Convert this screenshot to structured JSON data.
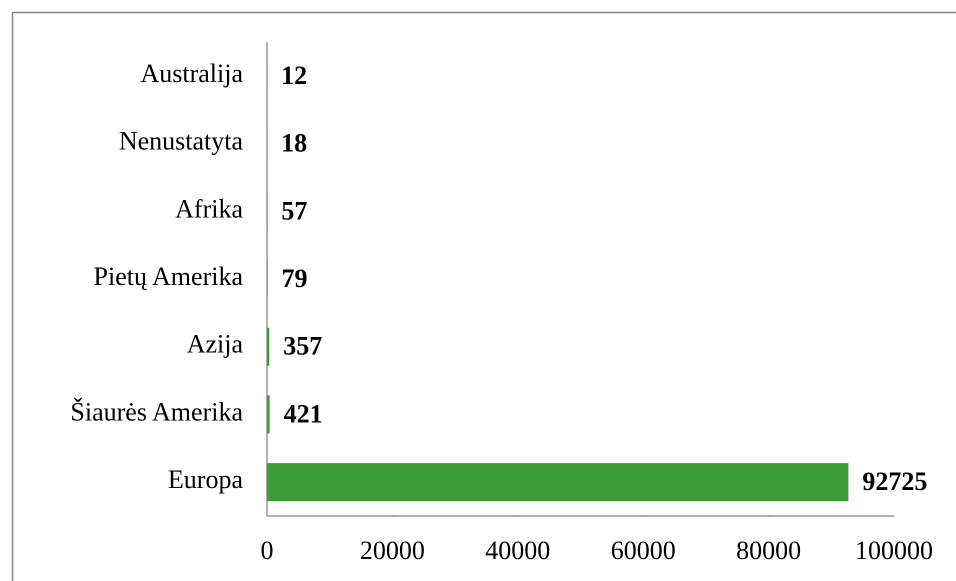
{
  "chart_data": {
    "type": "bar",
    "orientation": "horizontal",
    "categories": [
      "Australija",
      "Nenustatyta",
      "Afrika",
      "Pietų Amerika",
      "Azija",
      "Šiaurės Amerika",
      "Europa"
    ],
    "values": [
      12,
      18,
      57,
      79,
      357,
      421,
      92725
    ],
    "color": "#3a9b37",
    "xlim": [
      0,
      100000
    ],
    "xticks": [
      0,
      20000,
      40000,
      60000,
      80000,
      100000
    ],
    "grid": false
  }
}
